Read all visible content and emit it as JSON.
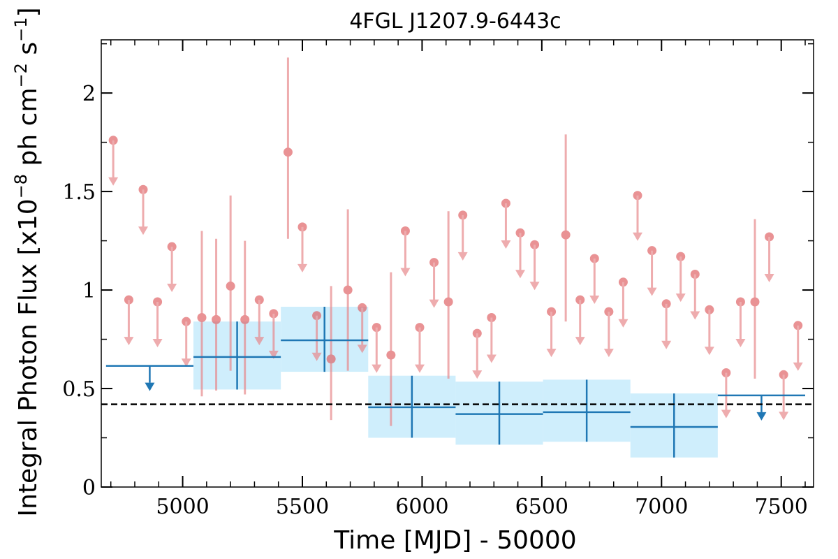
{
  "chart_data": {
    "type": "scatter",
    "title": "4FGL J1207.9-6443c",
    "xlabel": "Time [MJD] - 50000",
    "ylabel_text": "Integral Photon Flux [x10",
    "ylabel_exp1": "−8",
    "ylabel_mid": " ph cm",
    "ylabel_exp2": "−2",
    "ylabel_s": " s",
    "ylabel_exp3": "−1",
    "ylabel_end": "]",
    "xlim": [
      4660,
      7635
    ],
    "ylim": [
      0,
      2.27
    ],
    "x_ticks": [
      5000,
      5500,
      6000,
      6500,
      7000,
      7500
    ],
    "y_ticks": [
      0,
      0.5,
      1,
      1.5,
      2
    ],
    "y_tick_labels": [
      "0",
      "0.5",
      "1",
      "1.5",
      "2"
    ],
    "reference_line": {
      "y": 0.42,
      "style": "dashed",
      "color": "#000000"
    },
    "colors": {
      "short_bins": "#e8898c",
      "long_bins": "#1f77b4",
      "long_band": "#cfeefc"
    },
    "series": [
      {
        "key": "short_bins",
        "measurements": [
          {
            "x": 5080,
            "y": 0.86,
            "lo": 0.46,
            "hi": 1.3
          },
          {
            "x": 5140,
            "y": 0.85,
            "lo": 0.49,
            "hi": 1.26
          },
          {
            "x": 5200,
            "y": 1.02,
            "lo": 0.59,
            "hi": 1.48
          },
          {
            "x": 5260,
            "y": 0.85,
            "lo": 0.47,
            "hi": 1.25
          },
          {
            "x": 5440,
            "y": 1.7,
            "lo": 1.26,
            "hi": 2.18
          },
          {
            "x": 5620,
            "y": 0.65,
            "lo": 0.34,
            "hi": 1.02
          },
          {
            "x": 5690,
            "y": 1.0,
            "lo": 0.59,
            "hi": 1.41
          },
          {
            "x": 5870,
            "y": 0.67,
            "lo": 0.31,
            "hi": 1.09
          },
          {
            "x": 6110,
            "y": 0.94,
            "lo": 0.55,
            "hi": 1.4
          },
          {
            "x": 6600,
            "y": 1.28,
            "lo": 0.84,
            "hi": 1.79
          },
          {
            "x": 7390,
            "y": 0.94,
            "lo": 0.55,
            "hi": 1.36
          }
        ],
        "upper_limits": [
          {
            "x": 4710,
            "y": 1.76
          },
          {
            "x": 4775,
            "y": 0.95
          },
          {
            "x": 4835,
            "y": 1.51
          },
          {
            "x": 4895,
            "y": 0.94
          },
          {
            "x": 4955,
            "y": 1.22
          },
          {
            "x": 5015,
            "y": 0.84
          },
          {
            "x": 5320,
            "y": 0.95
          },
          {
            "x": 5380,
            "y": 0.88
          },
          {
            "x": 5500,
            "y": 1.32
          },
          {
            "x": 5560,
            "y": 0.87
          },
          {
            "x": 5750,
            "y": 0.91
          },
          {
            "x": 5810,
            "y": 0.81
          },
          {
            "x": 5930,
            "y": 1.3
          },
          {
            "x": 5990,
            "y": 0.81
          },
          {
            "x": 6050,
            "y": 1.14
          },
          {
            "x": 6170,
            "y": 1.38
          },
          {
            "x": 6230,
            "y": 0.78
          },
          {
            "x": 6290,
            "y": 0.86
          },
          {
            "x": 6350,
            "y": 1.44
          },
          {
            "x": 6410,
            "y": 1.29
          },
          {
            "x": 6470,
            "y": 1.23
          },
          {
            "x": 6540,
            "y": 0.89
          },
          {
            "x": 6660,
            "y": 0.95
          },
          {
            "x": 6720,
            "y": 1.16
          },
          {
            "x": 6780,
            "y": 0.89
          },
          {
            "x": 6840,
            "y": 1.04
          },
          {
            "x": 6900,
            "y": 1.48
          },
          {
            "x": 6960,
            "y": 1.2
          },
          {
            "x": 7020,
            "y": 0.93
          },
          {
            "x": 7080,
            "y": 1.17
          },
          {
            "x": 7140,
            "y": 1.08
          },
          {
            "x": 7200,
            "y": 0.9
          },
          {
            "x": 7270,
            "y": 0.58
          },
          {
            "x": 7330,
            "y": 0.94
          },
          {
            "x": 7450,
            "y": 1.27
          },
          {
            "x": 7510,
            "y": 0.57
          },
          {
            "x": 7570,
            "y": 0.82
          }
        ]
      },
      {
        "key": "long_bins",
        "measurements": [
          {
            "x0": 5045,
            "x1": 5410,
            "y": 0.66,
            "lo": 0.495,
            "hi": 0.84
          },
          {
            "x0": 5410,
            "x1": 5775,
            "y": 0.745,
            "lo": 0.585,
            "hi": 0.915
          },
          {
            "x0": 5775,
            "x1": 6140,
            "y": 0.405,
            "lo": 0.25,
            "hi": 0.565
          },
          {
            "x0": 6140,
            "x1": 6505,
            "y": 0.37,
            "lo": 0.215,
            "hi": 0.535
          },
          {
            "x0": 6505,
            "x1": 6870,
            "y": 0.38,
            "lo": 0.23,
            "hi": 0.545
          },
          {
            "x0": 6870,
            "x1": 7235,
            "y": 0.305,
            "lo": 0.15,
            "hi": 0.475
          }
        ],
        "upper_limits": [
          {
            "x0": 4680,
            "x1": 5045,
            "y": 0.615
          },
          {
            "x0": 7235,
            "x1": 7600,
            "y": 0.465
          }
        ]
      }
    ]
  }
}
